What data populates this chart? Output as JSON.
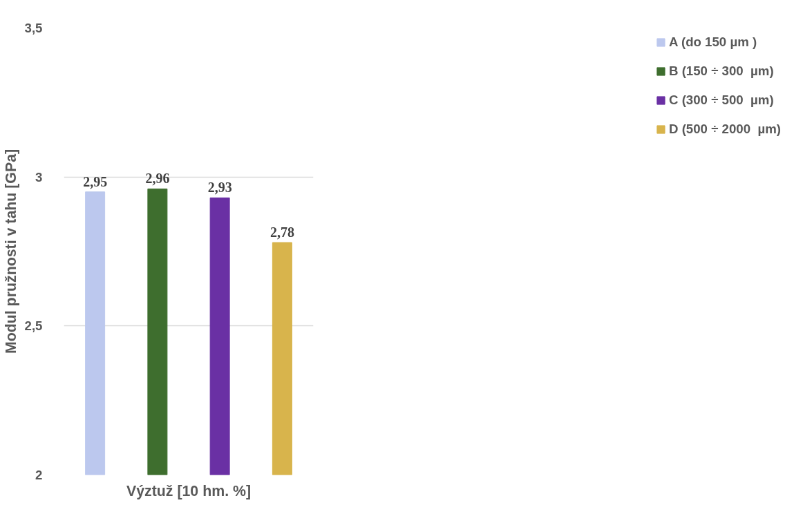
{
  "chart_data": {
    "type": "bar",
    "xlabel": "Výztuž [10 hm. %]",
    "ylabel": "Modul pružnosti v tahu [GPa]",
    "categories": [
      null
    ],
    "series": [
      {
        "name": "A (do 150 µm )",
        "color": "#bcc8ee",
        "values": [
          2.95
        ],
        "value_labels": [
          "2,95"
        ]
      },
      {
        "name": "B (150 ÷ 300  µm)",
        "color": "#3e6e2e",
        "values": [
          2.96
        ],
        "value_labels": [
          "2,96"
        ]
      },
      {
        "name": "C (300 ÷ 500  µm)",
        "color": "#6a30a4",
        "values": [
          2.93
        ],
        "value_labels": [
          "2,93"
        ]
      },
      {
        "name": "D (500 ÷ 2000  µm)",
        "color": "#d8b44c",
        "values": [
          2.78
        ],
        "value_labels": [
          "2,78"
        ]
      }
    ],
    "ylim": [
      2,
      3.5
    ],
    "yticks": [
      2,
      {
        "value": 2.5,
        "label": "2,5"
      },
      3,
      {
        "value": 3.5,
        "label": "3,5"
      }
    ],
    "grid": "y",
    "legend": "right",
    "tick_labels": "y"
  }
}
